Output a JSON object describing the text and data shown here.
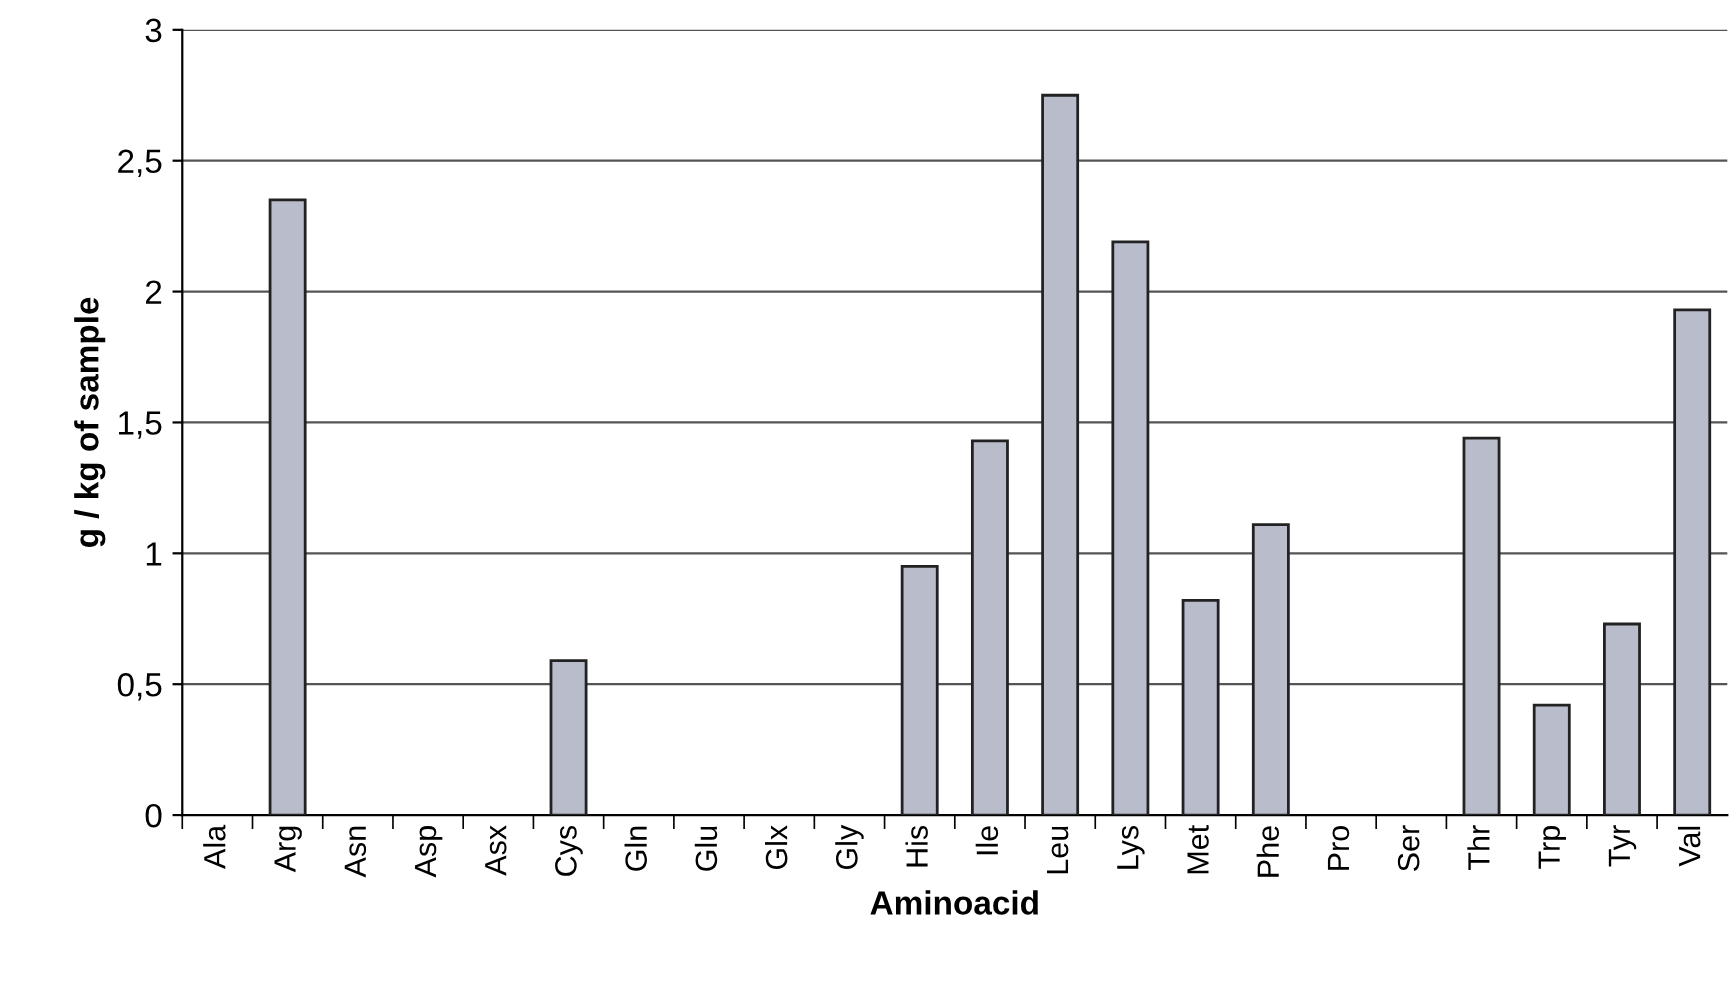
{
  "chart_data": {
    "type": "bar",
    "xlabel": "Aminoacid",
    "ylabel": "g / kg of sample",
    "categories": [
      "Ala",
      "Arg",
      "Asn",
      "Asp",
      "Asx",
      "Cys",
      "Gln",
      "Glu",
      "Glx",
      "Gly",
      "His",
      "Ile",
      "Leu",
      "Lys",
      "Met",
      "Phe",
      "Pro",
      "Ser",
      "Thr",
      "Trp",
      "Tyr",
      "Val"
    ],
    "values": [
      null,
      2.35,
      null,
      null,
      null,
      0.59,
      null,
      null,
      null,
      null,
      0.95,
      1.43,
      2.75,
      2.19,
      0.82,
      1.11,
      null,
      null,
      1.44,
      0.42,
      0.73,
      1.93
    ],
    "color": "#b8bccb",
    "ylim": [
      0,
      3
    ],
    "yticks": [
      0,
      {
        "value": 0.5,
        "label": "0,5"
      },
      1,
      {
        "value": 1.5,
        "label": "1,5"
      },
      2,
      {
        "value": 2.5,
        "label": "2,5"
      },
      3
    ],
    "grid": "y",
    "legend": false
  }
}
